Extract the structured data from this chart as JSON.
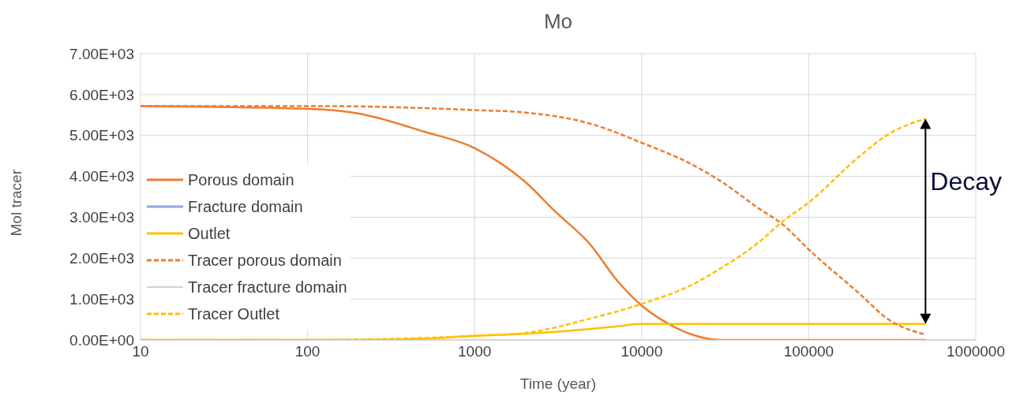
{
  "chart_data": {
    "type": "line",
    "title": "Mo",
    "xlabel": "Time (year)",
    "ylabel": "Mol tracer",
    "log": "x",
    "xlim": [
      10,
      1000000
    ],
    "xticks": [
      10,
      100,
      1000,
      10000,
      100000,
      1000000
    ],
    "ylim": [
      0,
      7000
    ],
    "yticks": [
      {
        "value": 0,
        "label": "0.00E+00"
      },
      {
        "value": 1000,
        "label": "1.00E+03"
      },
      {
        "value": 2000,
        "label": "2.00E+03"
      },
      {
        "value": 3000,
        "label": "3.00E+03"
      },
      {
        "value": 4000,
        "label": "4.00E+03"
      },
      {
        "value": 5000,
        "label": "5.00E+03"
      },
      {
        "value": 6000,
        "label": "6.00E+03"
      },
      {
        "value": 7000,
        "label": "7.00E+03"
      }
    ],
    "grid": true,
    "legend": "bottom left",
    "annotations": [
      "Decay"
    ],
    "series": [
      {
        "name": "Porous domain",
        "color": "#ed7d31",
        "line_style": "solid",
        "x": [
          10,
          100,
          200,
          500,
          1000,
          2000,
          3000,
          5000,
          7000,
          10000,
          15000,
          20000,
          30000,
          500000
        ],
        "values": [
          5720,
          5650,
          5540,
          5090,
          4690,
          3870,
          3160,
          2300,
          1490,
          840,
          360,
          130,
          0,
          0
        ]
      },
      {
        "name": "Fracture domain",
        "color": "#8faadc",
        "line_style": "solid"
      },
      {
        "name": "Outlet",
        "color": "#ffc000",
        "line_style": "solid",
        "x": [
          10,
          200,
          500,
          1000,
          2000,
          5000,
          7000,
          10000,
          500000
        ],
        "values": [
          0,
          0,
          30,
          100,
          150,
          270,
          330,
          390,
          390
        ]
      },
      {
        "name": "Tracer porous domain",
        "color": "#ed7d31",
        "line_style": "dashed",
        "x": [
          10,
          100,
          1000,
          2000,
          5000,
          10000,
          20000,
          30000,
          50000,
          70000,
          100000,
          200000,
          300000,
          500000
        ],
        "values": [
          5720,
          5720,
          5620,
          5560,
          5280,
          4820,
          4290,
          3870,
          3220,
          2820,
          2210,
          1140,
          500,
          130
        ]
      },
      {
        "name": "Tracer fracture domain",
        "color": "#a5a5a5",
        "line_style": "solid"
      },
      {
        "name": "Tracer Outlet",
        "color": "#ffc000",
        "line_style": "dashed",
        "x": [
          10,
          100,
          1000,
          2000,
          5000,
          10000,
          20000,
          30000,
          50000,
          70000,
          100000,
          200000,
          300000,
          500000
        ],
        "values": [
          0,
          0,
          100,
          170,
          530,
          880,
          1350,
          1760,
          2380,
          2900,
          3360,
          4480,
          5030,
          5410
        ]
      }
    ]
  }
}
